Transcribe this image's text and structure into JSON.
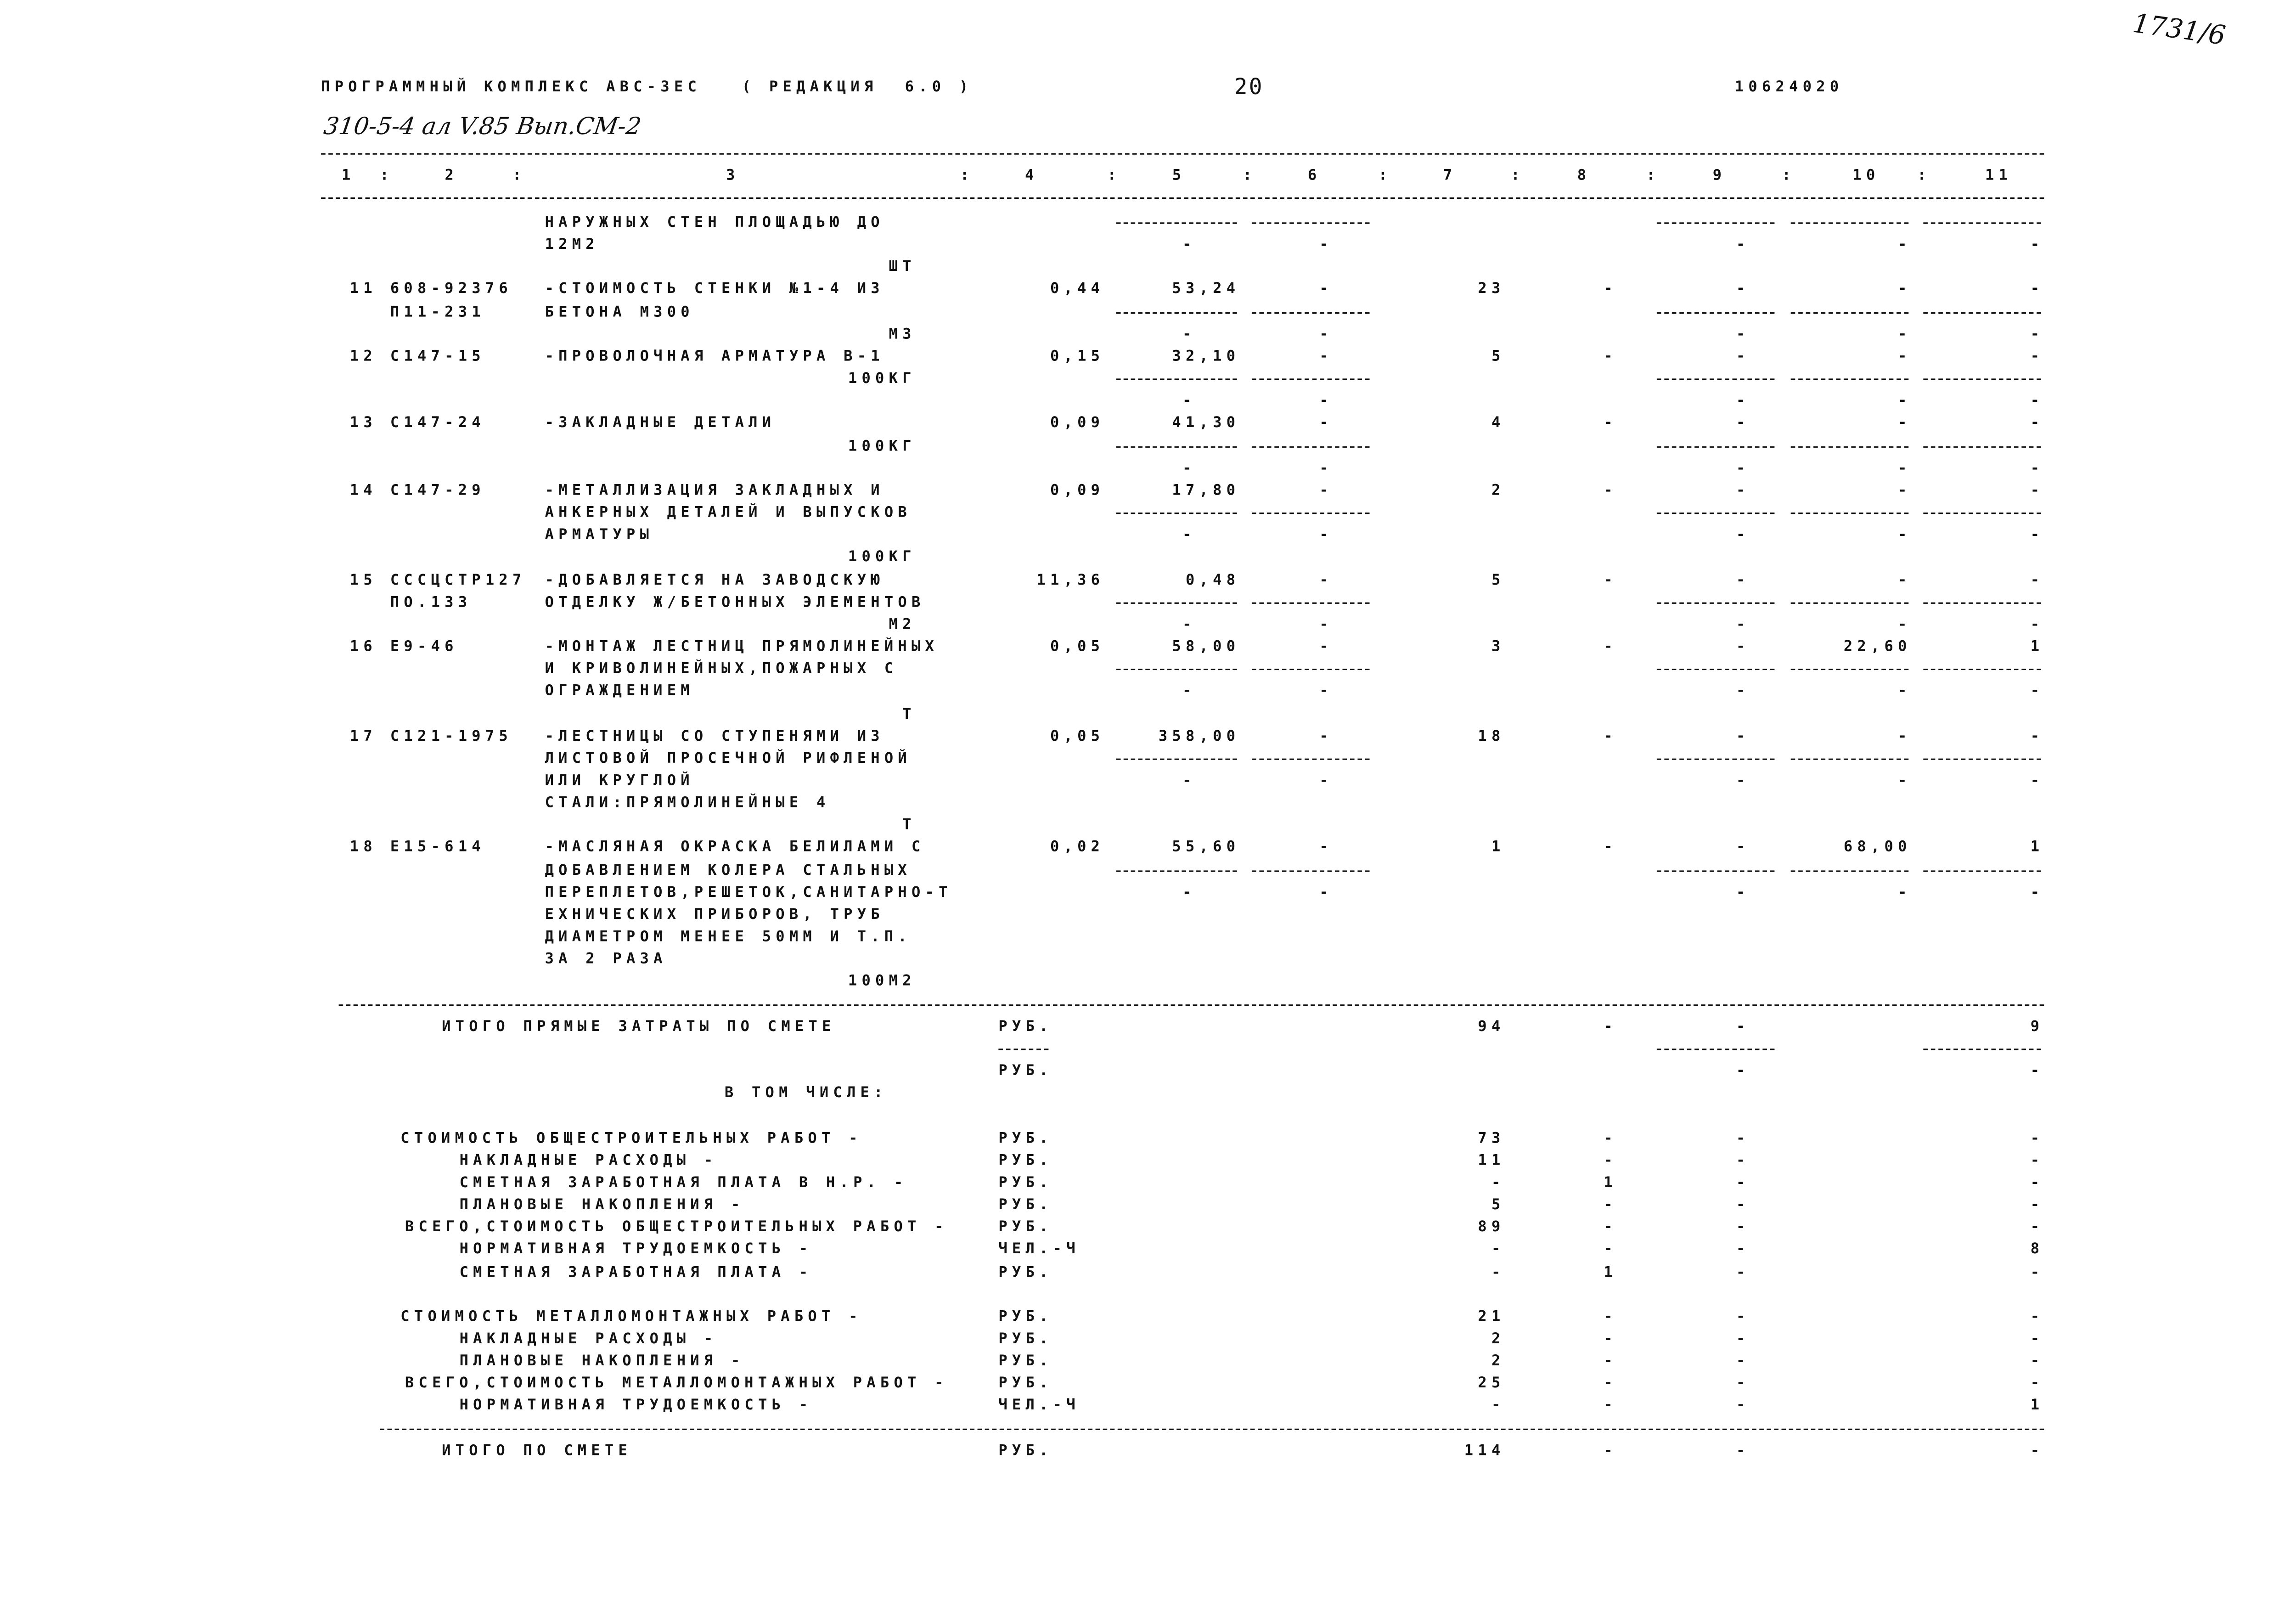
{
  "header": {
    "program": "ПРОГРАММНЫЙ КОМПЛЕКС АВС-3ЕС   ( РЕДАКЦИЯ  6.0 )",
    "page_number": "20",
    "code": "10624020",
    "handwritten_ref": "310-5-4 ал V.85 Вып.СМ-2",
    "corner_mark": "1731/6"
  },
  "columns": [
    "1",
    ":",
    "2",
    ":",
    "3",
    ":",
    "4",
    ":",
    "5",
    ":",
    "6",
    ":",
    "7",
    ":",
    "8",
    ":",
    "9",
    ":",
    "10",
    ":",
    "11"
  ],
  "lines": [
    {
      "text": "НАРУЖНЫХ СТЕН ПЛОЩАДЬЮ ДО",
      "rule": "item"
    },
    {
      "text": "12М2",
      "c5": "-",
      "c6": "-",
      "c9": "-",
      "c10": "-",
      "c11": "-"
    },
    {
      "unit": "ШТ"
    },
    {
      "n": "11",
      "code": "608-92376",
      "text": "-СТОИМОСТЬ СТЕНКИ №1-4 ИЗ",
      "qty": "0,44",
      "price": "53,24",
      "c6": "-",
      "c7": "23",
      "c8": "-",
      "c9": "-",
      "c10": "-",
      "c11": "-"
    },
    {
      "code": "П11-231",
      "text": "БЕТОНА М300",
      "rule": "item"
    },
    {
      "unit": "М3",
      "c5": "-",
      "c6": "-",
      "c9": "-",
      "c10": "-",
      "c11": "-"
    },
    {
      "n": "12",
      "code": "С147-15",
      "text": "-ПРОВОЛОЧНАЯ АРМАТУРА В-1",
      "qty": "0,15",
      "price": "32,10",
      "c6": "-",
      "c7": "5",
      "c8": "-",
      "c9": "-",
      "c10": "-",
      "c11": "-"
    },
    {
      "unit": "100КГ",
      "rule": "item"
    },
    {
      "c5": "-",
      "c6": "-",
      "c9": "-",
      "c10": "-",
      "c11": "-"
    },
    {
      "n": "13",
      "code": "С147-24",
      "text": "-ЗАКЛАДНЫЕ ДЕТАЛИ",
      "qty": "0,09",
      "price": "41,30",
      "c6": "-",
      "c7": "4",
      "c8": "-",
      "c9": "-",
      "c10": "-",
      "c11": "-"
    },
    {
      "unit": "100КГ",
      "rule": "item"
    },
    {
      "c5": "-",
      "c6": "-",
      "c9": "-",
      "c10": "-",
      "c11": "-"
    },
    {
      "n": "14",
      "code": "С147-29",
      "text": "-МЕТАЛЛИЗАЦИЯ ЗАКЛАДНЫХ И",
      "qty": "0,09",
      "price": "17,80",
      "c6": "-",
      "c7": "2",
      "c8": "-",
      "c9": "-",
      "c10": "-",
      "c11": "-"
    },
    {
      "text": "АНКЕРНЫХ ДЕТАЛЕЙ И ВЫПУСКОВ",
      "rule": "item"
    },
    {
      "text": "АРМАТУРЫ",
      "c5": "-",
      "c6": "-",
      "c9": "-",
      "c10": "-",
      "c11": "-"
    },
    {
      "unit": "100КГ"
    },
    {
      "n": "15",
      "code": "СССЦСТР127",
      "text": "-ДОБАВЛЯЕТСЯ НА ЗАВОДСКУЮ",
      "qty": "11,36",
      "price": "0,48",
      "c6": "-",
      "c7": "5",
      "c8": "-",
      "c9": "-",
      "c10": "-",
      "c11": "-"
    },
    {
      "code": "ПО.133",
      "text": "ОТДЕЛКУ Ж/БЕТОННЫХ ЭЛЕМЕНТОВ",
      "rule": "item"
    },
    {
      "unit": "М2",
      "c5": "-",
      "c6": "-",
      "c9": "-",
      "c10": "-",
      "c11": "-"
    },
    {
      "n": "16",
      "code": "Е9-46",
      "text": "-МОНТАЖ ЛЕСТНИЦ ПРЯМОЛИНЕЙНЫХ",
      "qty": "0,05",
      "price": "58,00",
      "c6": "-",
      "c7": "3",
      "c8": "-",
      "c9": "-",
      "c10": "22,60",
      "c11": "1"
    },
    {
      "text": "И КРИВОЛИНЕЙНЫХ,ПОЖАРНЫХ С",
      "rule": "item"
    },
    {
      "text": "ОГРАЖДЕНИЕМ",
      "c5": "-",
      "c6": "-",
      "c9": "-",
      "c10": "-",
      "c11": "-"
    },
    {
      "unit": "Т"
    },
    {
      "n": "17",
      "code": "С121-1975",
      "text": "-ЛЕСТНИЦЫ СО СТУПЕНЯМИ ИЗ",
      "qty": "0,05",
      "price": "358,00",
      "c6": "-",
      "c7": "18",
      "c8": "-",
      "c9": "-",
      "c10": "-",
      "c11": "-"
    },
    {
      "text": "ЛИСТОВОЙ ПРОСЕЧНОЙ РИФЛЕНОЙ",
      "rule": "item"
    },
    {
      "text": "ИЛИ КРУГЛОЙ",
      "c5": "-",
      "c6": "-",
      "c9": "-",
      "c10": "-",
      "c11": "-"
    },
    {
      "text": "СТАЛИ:ПРЯМОЛИНЕЙНЫЕ 4"
    },
    {
      "unit": "Т"
    },
    {
      "n": "18",
      "code": "Е15-614",
      "text": "-МАСЛЯНАЯ ОКРАСКА БЕЛИЛАМИ С",
      "qty": "0,02",
      "price": "55,60",
      "c6": "-",
      "c7": "1",
      "c8": "-",
      "c9": "-",
      "c10": "68,00",
      "c11": "1"
    },
    {
      "text": "ДОБАВЛЕНИЕМ КОЛЕРА СТАЛЬНЫХ",
      "rule": "item"
    },
    {
      "text": "ПЕРЕПЛЕТОВ,РЕШЕТОК,САНИТАРНО-Т",
      "c5": "-",
      "c6": "-",
      "c9": "-",
      "c10": "-",
      "c11": "-"
    },
    {
      "text": "ЕХНИЧЕСКИХ ПРИБОРОВ, ТРУБ"
    },
    {
      "text": "ДИАМЕТРОМ МЕНЕЕ 50ММ И Т.П."
    },
    {
      "text": "ЗА 2 РАЗА"
    },
    {
      "unit": "100М2"
    },
    {
      "rule": "full"
    },
    {
      "label": "ИТОГО ПРЯМЫЕ ЗАТРАТЫ ПО СМЕТЕ",
      "level": "total",
      "cur": "РУБ.",
      "c7": "94",
      "c8": "-",
      "c9": "-",
      "c11": "9"
    },
    {
      "rule": "subtotal"
    },
    {
      "cur": "РУБ.",
      "c9": "-",
      "c11": "-"
    },
    {
      "label": "В ТОМ ЧИСЛЕ:",
      "level": "caption"
    },
    {},
    {
      "label": "СТОИМОСТЬ ОБЩЕСТРОИТЕЛЬНЫХ РАБОТ -",
      "level": "main",
      "cur": "РУБ.",
      "c7": "73",
      "c8": "-",
      "c9": "-",
      "c11": "-"
    },
    {
      "label": "НАКЛАДНЫЕ РАСХОДЫ -",
      "level": "sub",
      "cur": "РУБ.",
      "c7": "11",
      "c8": "-",
      "c9": "-",
      "c11": "-"
    },
    {
      "label": "СМЕТНАЯ ЗАРАБОТНАЯ ПЛАТА В Н.Р. -",
      "level": "sub",
      "cur": "РУБ.",
      "c7": "-",
      "c8": "1",
      "c9": "-",
      "c11": "-"
    },
    {
      "label": "ПЛАНОВЫЕ НАКОПЛЕНИЯ -",
      "level": "sub",
      "cur": "РУБ.",
      "c7": "5",
      "c8": "-",
      "c9": "-",
      "c11": "-"
    },
    {
      "label": "ВСЕГО,СТОИМОСТЬ ОБЩЕСТРОИТЕЛЬНЫХ РАБОТ -",
      "level": "sum",
      "cur": "РУБ.",
      "c7": "89",
      "c8": "-",
      "c9": "-",
      "c11": "-"
    },
    {
      "label": "НОРМАТИВНАЯ ТРУДОЕМКОСТЬ -",
      "level": "sub",
      "cur": "ЧЕЛ.-Ч",
      "c7": "-",
      "c8": "-",
      "c9": "-",
      "c11": "8"
    },
    {
      "label": "СМЕТНАЯ ЗАРАБОТНАЯ ПЛАТА -",
      "level": "sub",
      "cur": "РУБ.",
      "c7": "-",
      "c8": "1",
      "c9": "-",
      "c11": "-"
    },
    {},
    {
      "label": "СТОИМОСТЬ МЕТАЛЛОМОНТАЖНЫХ РАБОТ -",
      "level": "main",
      "cur": "РУБ.",
      "c7": "21",
      "c8": "-",
      "c9": "-",
      "c11": "-"
    },
    {
      "label": "НАКЛАДНЫЕ РАСХОДЫ -",
      "level": "sub",
      "cur": "РУБ.",
      "c7": "2",
      "c8": "-",
      "c9": "-",
      "c11": "-"
    },
    {
      "label": "ПЛАНОВЫЕ НАКОПЛЕНИЯ -",
      "level": "sub",
      "cur": "РУБ.",
      "c7": "2",
      "c8": "-",
      "c9": "-",
      "c11": "-"
    },
    {
      "label": "ВСЕГО,СТОИМОСТЬ МЕТАЛЛОМОНТАЖНЫХ РАБОТ -",
      "level": "sum",
      "cur": "РУБ.",
      "c7": "25",
      "c8": "-",
      "c9": "-",
      "c11": "-"
    },
    {
      "label": "НОРМАТИВНАЯ ТРУДОЕМКОСТЬ -",
      "level": "sub",
      "cur": "ЧЕЛ.-Ч",
      "c7": "-",
      "c8": "-",
      "c9": "-",
      "c11": "1"
    },
    {
      "rule": "total"
    },
    {
      "label": "ИТОГО ПО СМЕТЕ",
      "level": "total",
      "cur": "РУБ.",
      "c7": "114",
      "c8": "-",
      "c9": "-",
      "c11": "-"
    }
  ]
}
